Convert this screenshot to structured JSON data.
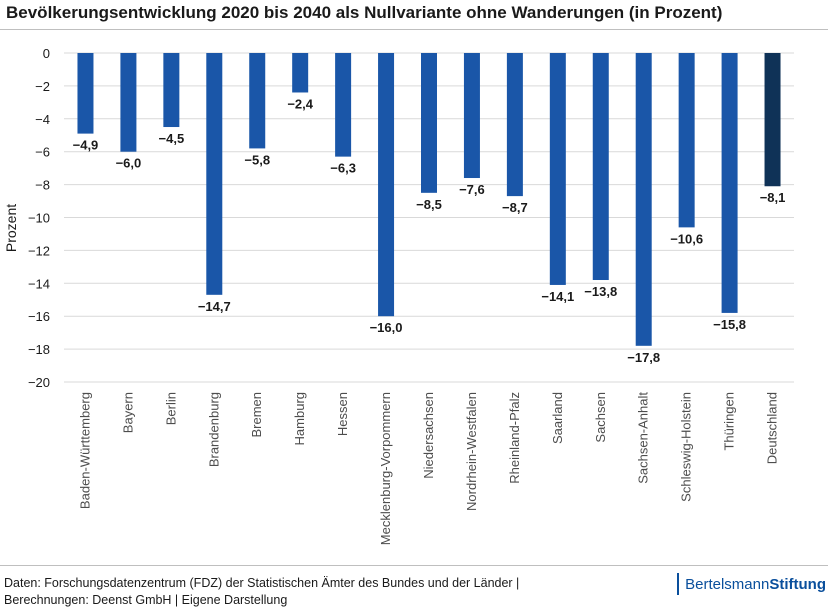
{
  "chart_data": {
    "type": "bar",
    "title": "Bevölkerungsentwicklung 2020 bis 2040 als Nullvariante ohne Wanderungen (in Prozent)",
    "xlabel": "",
    "ylabel": "Prozent",
    "ylim": [
      -20,
      0
    ],
    "yticks": [
      0,
      -2,
      -4,
      -6,
      -8,
      -10,
      -12,
      -14,
      -16,
      -18,
      -20
    ],
    "ytick_labels": [
      "0",
      "−2",
      "−4",
      "−6",
      "−8",
      "−10",
      "−12",
      "−14",
      "−16",
      "−18",
      "−20"
    ],
    "grid": true,
    "categories": [
      "Baden-Württemberg",
      "Bayern",
      "Berlin",
      "Brandenburg",
      "Bremen",
      "Hamburg",
      "Hessen",
      "Mecklenburg-Vorpommern",
      "Niedersachsen",
      "Nordrhein-Westfalen",
      "Rheinland-Pfalz",
      "Saarland",
      "Sachsen",
      "Sachsen-Anhalt",
      "Schleswig-Holstein",
      "Thüringen",
      "Deutschland"
    ],
    "values": [
      -4.9,
      -6.0,
      -4.5,
      -14.7,
      -5.8,
      -2.4,
      -6.3,
      -16.0,
      -8.5,
      -7.6,
      -8.7,
      -14.1,
      -13.8,
      -17.8,
      -10.6,
      -15.8,
      -8.1
    ],
    "data_labels": [
      "−4,9",
      "−6,0",
      "−4,5",
      "−14,7",
      "−5,8",
      "−2,4",
      "−6,3",
      "−16,0",
      "−8,5",
      "−7,6",
      "−8,7",
      "−14,1",
      "−13,8",
      "−17,8",
      "−10,6",
      "−15,8",
      "−8,1"
    ],
    "colors": {
      "bar": "#1a56a8",
      "highlight": "#0f3257",
      "grid": "#d9d9d9"
    },
    "highlight_category": "Deutschland"
  },
  "footer": {
    "source_line1": "Daten: Forschungsdatenzentrum (FDZ) der Statistischen Ämter des Bundes und der Länder |",
    "source_line2": "Berechnungen: Deenst GmbH | Eigene Darstellung"
  },
  "brand": {
    "name_light": "Bertelsmann",
    "name_bold": "Stiftung"
  }
}
